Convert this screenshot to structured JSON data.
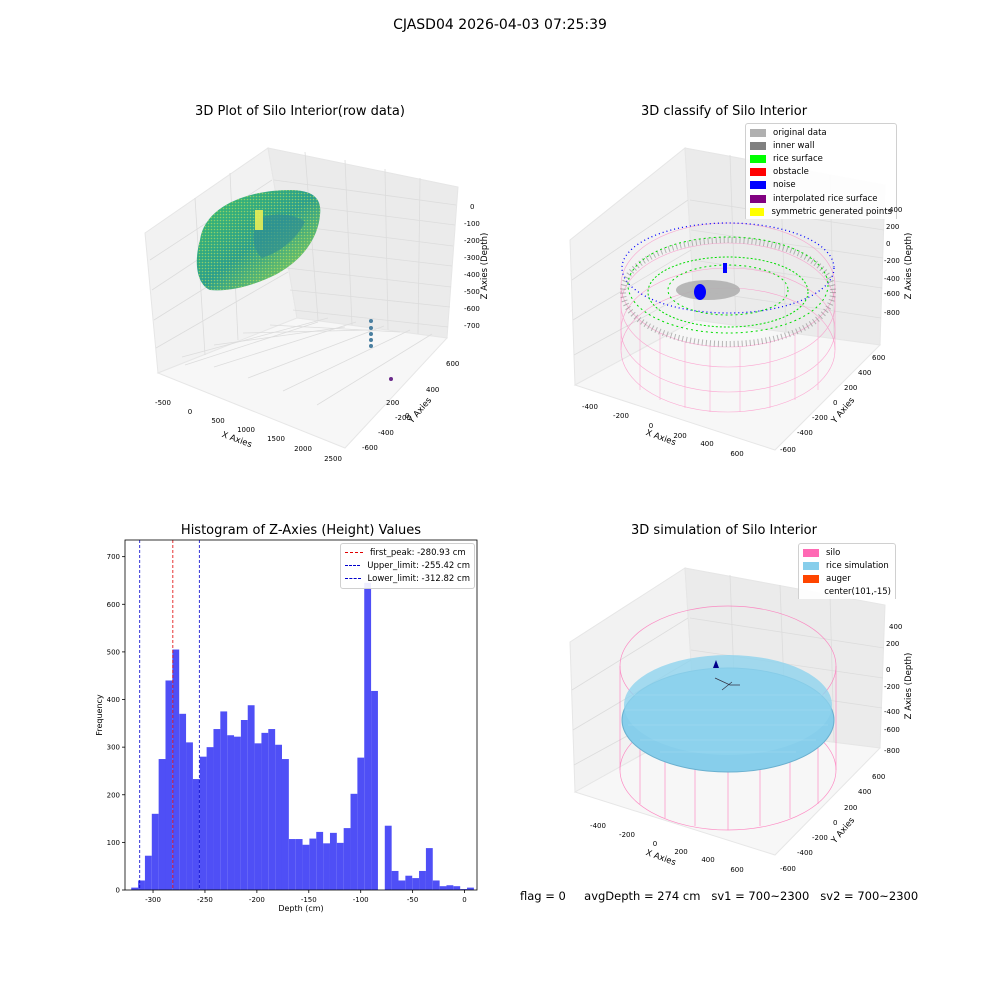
{
  "suptitle": "CJASD04 2026-04-03 07:25:39",
  "footer": {
    "flag": "flag = 0",
    "avg_depth": "avgDepth = 274 cm",
    "sv1": "sv1 = 700~2300",
    "sv2": "sv2 = 700~2300"
  },
  "colors": {
    "hist": "#4f4ff6",
    "first_peak": "#e00000",
    "limits": "#0000cc",
    "silo": "#ff69b4",
    "rice": "#87ceeb",
    "auger": "#ff4500",
    "original": "#b0b0b0",
    "inner_wall": "#808080",
    "rice_surface": "#00ff00",
    "obstacle": "#ff0000",
    "noise": "#0000ff",
    "interp": "#800080",
    "sym": "#ffff00"
  },
  "chart_data": [
    {
      "type": "scatter",
      "title": "3D Plot of Silo Interior(row data)",
      "xlabel": "X Axies",
      "ylabel": "Y Axies",
      "zlabel": "Z Axies (Depth)",
      "xticks": [
        "-500",
        "0",
        "500",
        "1000",
        "1500",
        "2000",
        "2500"
      ],
      "yticks": [
        "600",
        "400",
        "200",
        "0",
        "-200",
        "-400",
        "-600"
      ],
      "zticks": [
        "0",
        "-100",
        "-200",
        "-300",
        "-400",
        "-500",
        "-600",
        "-700"
      ],
      "grid": true
    },
    {
      "type": "scatter",
      "title": "3D classify of Silo Interior",
      "xlabel": "X Axies",
      "ylabel": "Y Axies",
      "zlabel": "Z Axies (Depth)",
      "xticks": [
        "-400",
        "-200",
        "0",
        "200",
        "400",
        "600"
      ],
      "yticks": [
        "600",
        "400",
        "200",
        "0",
        "-200",
        "-400",
        "-600"
      ],
      "zticks": [
        "400",
        "200",
        "0",
        "-200",
        "-400",
        "-600",
        "-800"
      ],
      "legend": [
        "original data",
        "inner wall",
        "rice surface",
        "obstacle",
        "noise",
        "interpolated rice surface",
        "symmetric generated points"
      ],
      "grid": true
    },
    {
      "type": "bar",
      "title": "Histogram of Z-Axies (Height) Values",
      "xlabel": "Depth (cm)",
      "ylabel": "Frequency",
      "xlim": [
        -327,
        12
      ],
      "ylim": [
        0,
        735
      ],
      "xticks": [
        -300,
        -250,
        -200,
        -150,
        -100,
        -50,
        0
      ],
      "yticks": [
        0,
        100,
        200,
        300,
        400,
        500,
        600,
        700
      ],
      "bin_start": -321,
      "bin_width": 6.6,
      "values": [
        5,
        20,
        72,
        160,
        275,
        440,
        505,
        370,
        310,
        233,
        280,
        300,
        338,
        375,
        325,
        322,
        357,
        388,
        308,
        330,
        338,
        305,
        275,
        107,
        107,
        95,
        108,
        122,
        98,
        120,
        99,
        130,
        202,
        278,
        645,
        418,
        0,
        135,
        40,
        20,
        30,
        25,
        40,
        88,
        20,
        8,
        10,
        8,
        2,
        5,
        0
      ],
      "vlines": [
        {
          "label": "first_peak: -280.93 cm",
          "x": -280.93,
          "color": "#e00000"
        },
        {
          "label": "Upper_limit: -255.42 cm",
          "x": -255.42,
          "color": "#0000cc"
        },
        {
          "label": "Lower_limit: -312.82 cm",
          "x": -312.82,
          "color": "#0000cc"
        }
      ],
      "legend_position": "upper right",
      "grid": false
    },
    {
      "type": "scatter",
      "title": "3D simulation of Silo Interior",
      "xlabel": "X Axies",
      "ylabel": "Y Axies",
      "zlabel": "Z Axies (Depth)",
      "xticks": [
        "-400",
        "-200",
        "0",
        "200",
        "400",
        "600"
      ],
      "yticks": [
        "600",
        "400",
        "200",
        "0",
        "-200",
        "-400",
        "-600"
      ],
      "zticks": [
        "400",
        "200",
        "0",
        "-200",
        "-400",
        "-600",
        "-800"
      ],
      "legend": [
        "silo",
        "rice simulation",
        "auger",
        "center(101,-15)"
      ],
      "grid": true
    }
  ]
}
